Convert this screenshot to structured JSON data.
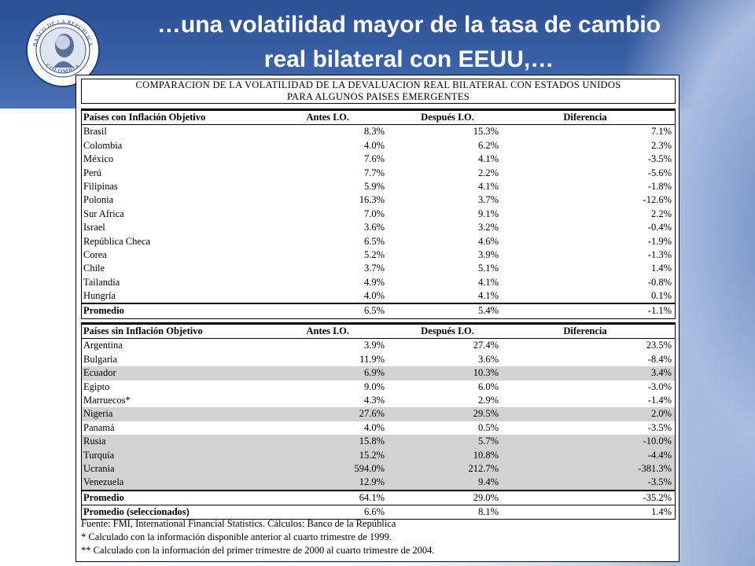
{
  "slide": {
    "title_line1": "…una volatilidad mayor de la tasa de cambio",
    "title_line2": "real bilateral con EEUU,…",
    "seal_text_top": "BANCO DE LA REPÚBLICA",
    "seal_text_bottom": "COLOMBIA"
  },
  "table": {
    "title_line1": "COMPARACION DE LA VOLATILIDAD DE LA DEVALUACION REAL BILATERAL CON ESTADOS UNIDOS",
    "title_line2": "PARA ALGUNOS PAISES EMERGENTES",
    "section1": {
      "header": {
        "name": "Países con Inflación Objetivo",
        "a": "Antes I.O.",
        "b": "Después I.O.",
        "d": "Diferencia"
      },
      "rows": [
        {
          "name": "Brasil",
          "a": "8.3%",
          "b": "15.3%",
          "d": "7.1%"
        },
        {
          "name": "Colombia",
          "a": "4.0%",
          "b": "6.2%",
          "d": "2.3%"
        },
        {
          "name": "México",
          "a": "7.6%",
          "b": "4.1%",
          "d": "-3.5%"
        },
        {
          "name": "Perú",
          "a": "7.7%",
          "b": "2.2%",
          "d": "-5.6%"
        },
        {
          "name": "Filipinas",
          "a": "5.9%",
          "b": "4.1%",
          "d": "-1.8%"
        },
        {
          "name": "Polonia",
          "a": "16.3%",
          "b": "3.7%",
          "d": "-12.6%"
        },
        {
          "name": "Sur Africa",
          "a": "7.0%",
          "b": "9.1%",
          "d": "2.2%"
        },
        {
          "name": "Israel",
          "a": "3.6%",
          "b": "3.2%",
          "d": "-0.4%"
        },
        {
          "name": "República Checa",
          "a": "6.5%",
          "b": "4.6%",
          "d": "-1.9%"
        },
        {
          "name": "Corea",
          "a": "5.2%",
          "b": "3.9%",
          "d": "-1.3%"
        },
        {
          "name": "Chile",
          "a": "3.7%",
          "b": "5.1%",
          "d": "1.4%"
        },
        {
          "name": "Tailandia",
          "a": "4.9%",
          "b": "4.1%",
          "d": "-0.8%"
        },
        {
          "name": "Hungría",
          "a": "4.0%",
          "b": "4.1%",
          "d": "0.1%"
        }
      ],
      "average": {
        "name": "Promedio",
        "a": "6.5%",
        "b": "5.4%",
        "d": "-1.1%"
      }
    },
    "section2": {
      "header": {
        "name": "Países sin Inflación Objetivo",
        "a": "Antes I.O.",
        "b": "Después I.O.",
        "d": "Diferencia"
      },
      "rows": [
        {
          "name": "Argentina",
          "a": "3.9%",
          "b": "27.4%",
          "d": "23.5%",
          "shade": false
        },
        {
          "name": "Bulgaria",
          "a": "11.9%",
          "b": "3.6%",
          "d": "-8.4%",
          "shade": false
        },
        {
          "name": "Ecuador",
          "a": "6.9%",
          "b": "10.3%",
          "d": "3.4%",
          "shade": true
        },
        {
          "name": "Egipto",
          "a": "9.0%",
          "b": "6.0%",
          "d": "-3.0%",
          "shade": false
        },
        {
          "name": "Marruecos*",
          "a": "4.3%",
          "b": "2.9%",
          "d": "-1.4%",
          "shade": false
        },
        {
          "name": "Nigeria",
          "a": "27.6%",
          "b": "29.5%",
          "d": "2.0%",
          "shade": true
        },
        {
          "name": "Panamá",
          "a": "4.0%",
          "b": "0.5%",
          "d": "-3.5%",
          "shade": false
        },
        {
          "name": "Rusia",
          "a": "15.8%",
          "b": "5.7%",
          "d": "-10.0%",
          "shade": true
        },
        {
          "name": "Turquía",
          "a": "15.2%",
          "b": "10.8%",
          "d": "-4.4%",
          "shade": true
        },
        {
          "name": "Ucrania",
          "a": "594.0%",
          "b": "212.7%",
          "d": "-381.3%",
          "shade": true
        },
        {
          "name": "Venezuela",
          "a": "12.9%",
          "b": "9.4%",
          "d": "-3.5%",
          "shade": true
        }
      ],
      "average": {
        "name": "Promedio",
        "a": "64.1%",
        "b": "29.0%",
        "d": "-35.2%"
      },
      "average_selected": {
        "name": "Promedio (seleccionados)",
        "a": "6.6%",
        "b": "8.1%",
        "d": "1.4%"
      }
    },
    "notes": [
      "Fuente: FMI, International Financial Statistics. Cálculos: Banco de la República",
      "* Calculado con la información disponible anterior al cuarto trimestre de 1999.",
      "** Calculado con la información del primer trimestre de 2000 al cuarto trimestre de 2004."
    ]
  },
  "colors": {
    "header_band": "#2b4f93",
    "row_shade": "#d2d2d2"
  }
}
